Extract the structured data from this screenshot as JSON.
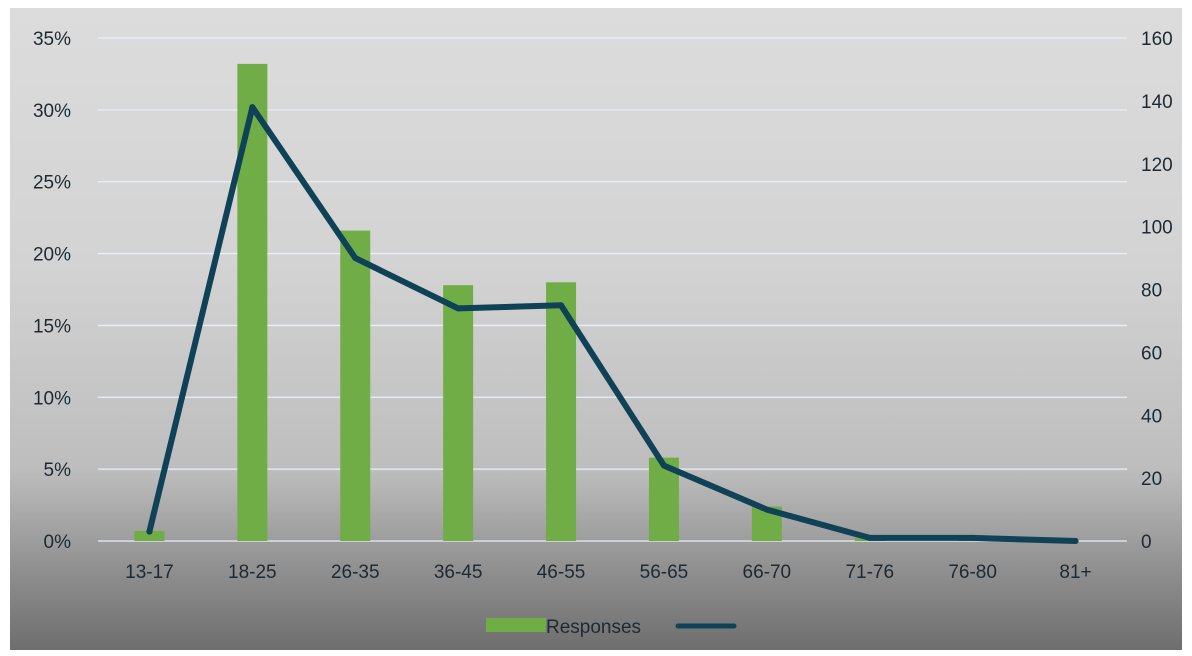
{
  "chart_data": {
    "type": "bar",
    "categories": [
      "13-17",
      "18-25",
      "26-35",
      "36-45",
      "46-55",
      "56-65",
      "66-70",
      "71-76",
      "76-80",
      "81+"
    ],
    "series": [
      {
        "name": "Responses",
        "type": "bar",
        "axis": "left",
        "values": [
          0.7,
          33.2,
          21.6,
          17.8,
          18.0,
          5.8,
          2.4,
          0.2,
          0.2,
          0.0
        ]
      },
      {
        "name": "",
        "type": "line",
        "axis": "right",
        "values": [
          3,
          138,
          90,
          74,
          75,
          24,
          10,
          1,
          1,
          0
        ]
      }
    ],
    "y_left": {
      "min": 0,
      "max": 35,
      "step": 5,
      "ticks": [
        "0%",
        "5%",
        "10%",
        "15%",
        "20%",
        "25%",
        "30%",
        "35%"
      ]
    },
    "y_right": {
      "min": 0,
      "max": 160,
      "step": 20,
      "ticks": [
        "0",
        "20",
        "40",
        "60",
        "80",
        "100",
        "120",
        "140",
        "160"
      ]
    },
    "grid": true,
    "legend": "bottom-center",
    "colors": {
      "bar": "#70ad47",
      "line": "#0f4157",
      "grid": "#e6f0f8"
    }
  }
}
